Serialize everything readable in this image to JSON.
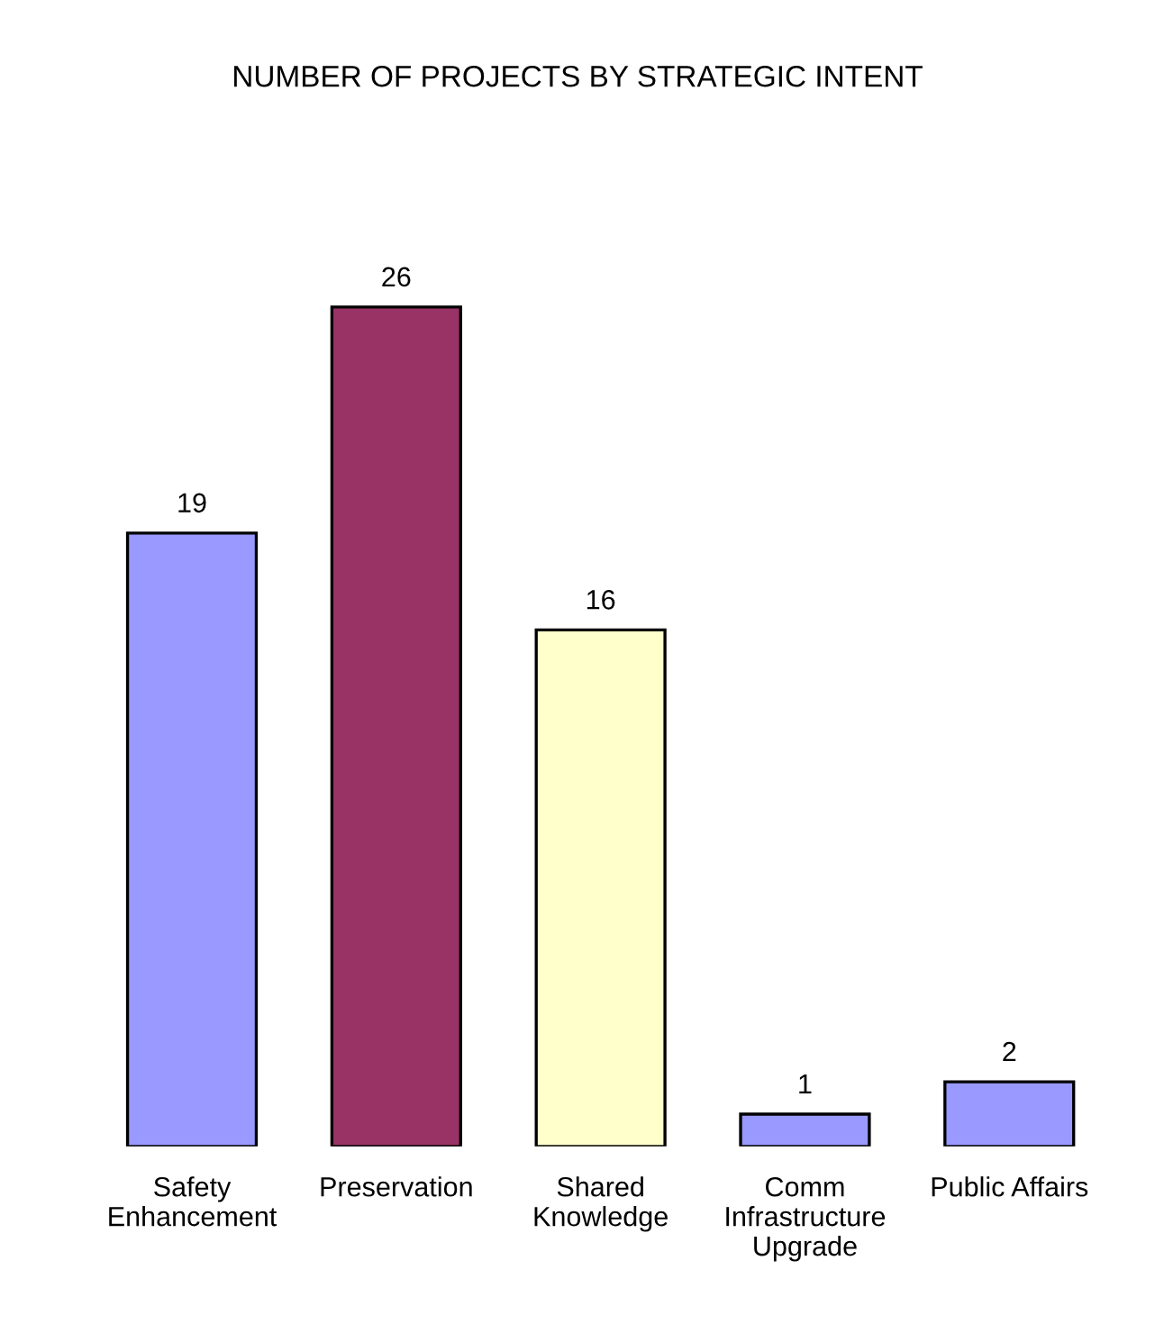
{
  "chart_data": {
    "type": "bar",
    "title": "NUMBER OF PROJECTS BY STRATEGIC INTENT",
    "categories": [
      "Safety\nEnhancement",
      "Preservation",
      "Shared\nKnowledge",
      "Comm\nInfrastructure\nUpgrade",
      "Public Affairs"
    ],
    "values": [
      19,
      26,
      16,
      1,
      2
    ],
    "colors": [
      "#9999ff",
      "#993366",
      "#ffffcc",
      "#9999ff",
      "#9999ff"
    ],
    "data_labels": true
  }
}
